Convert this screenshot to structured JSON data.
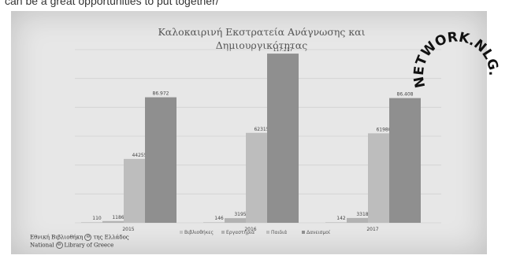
{
  "page": {
    "top_text": "can be a great opportunities to put together/",
    "logo": {
      "line1_a": "Εθνική Βιβλιοθήκη",
      "line1_b": "της Ελλάδος",
      "line2_a": "National",
      "line2_b": "Library of Greece",
      "mark": "Θ"
    },
    "watermark": "NETWORK.NLG.GR"
  },
  "chart_data": {
    "type": "bar",
    "title_lines": [
      "Καλοκαιρινή Εκστρατεία Ανάγνωσης και",
      "Δημιουργικότητας"
    ],
    "categories": [
      "2015",
      "2016",
      "2017"
    ],
    "series": [
      {
        "name": "Βιβλιοθήκες",
        "values": [
          110,
          146,
          142
        ],
        "labels": [
          "110",
          "146",
          "142"
        ],
        "color": "#c4c4c4"
      },
      {
        "name": "Εργαστήρια",
        "values": [
          1186,
          3195,
          3318
        ],
        "labels": [
          "1186",
          "3195",
          "3318"
        ],
        "color": "#b2b2b2"
      },
      {
        "name": "Παιδιά",
        "values": [
          44255,
          62315,
          61980
        ],
        "labels": [
          "44255",
          "62315",
          "61980"
        ],
        "color": "#bdbdbd"
      },
      {
        "name": "Δανεισμοί",
        "values": [
          86972,
          117217,
          86408
        ],
        "labels": [
          "86.972",
          "117.217",
          "86.408"
        ],
        "color": "#8f8f8f"
      }
    ],
    "ylim": [
      0,
      120000
    ],
    "grid": true,
    "legend": "bottom"
  }
}
